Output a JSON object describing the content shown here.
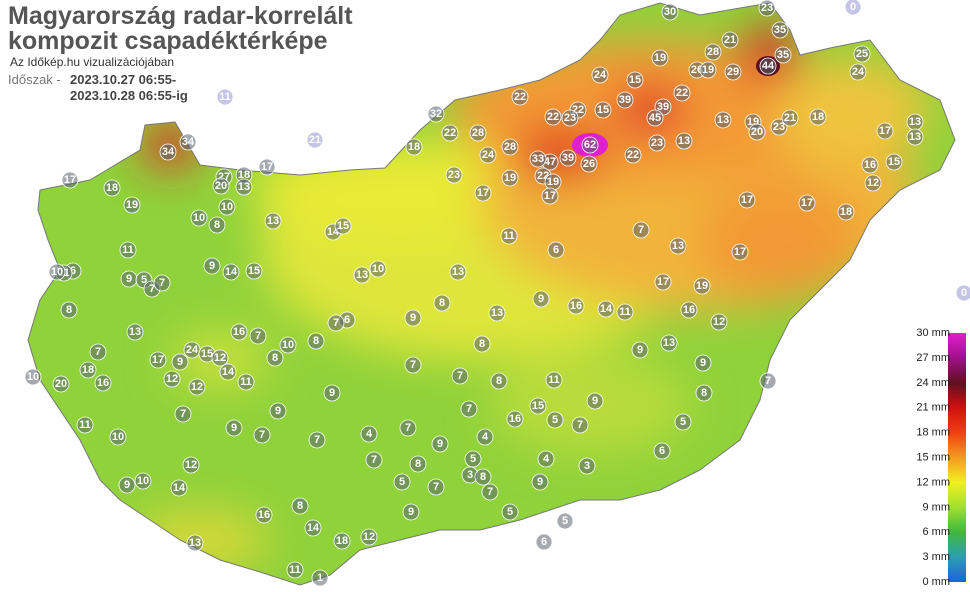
{
  "header": {
    "title_line1": "Magyarország radar-korrelált",
    "title_line2": "kompozit csapadéktérképe",
    "subtitle": "Az Időkép.hu vizualizációjában",
    "period_label": "Időszak -",
    "period_start": "2023.10.27 06:55-",
    "period_end": "2023.10.28 06:55-ig"
  },
  "legend": {
    "labels": [
      "30 mm",
      "27 mm",
      "24 mm",
      "21 mm",
      "18 mm",
      "15 mm",
      "12 mm",
      "9 mm",
      "6 mm",
      "3 mm",
      "0 mm"
    ]
  },
  "stations": [
    30,
    23,
    35,
    35,
    44,
    28,
    21,
    19,
    29,
    26,
    19,
    24,
    15,
    25,
    24,
    22,
    22,
    39,
    39,
    45,
    32,
    15,
    22,
    22,
    23,
    13,
    19,
    20,
    23,
    21,
    18,
    17,
    13,
    13,
    22,
    28,
    28,
    24,
    62,
    39,
    47,
    33,
    26,
    22,
    23,
    13,
    34,
    34,
    18,
    22,
    16,
    15,
    12,
    27,
    18,
    17,
    20,
    13,
    17,
    18,
    19,
    23,
    19,
    19,
    17,
    17,
    17,
    17,
    18,
    10,
    10,
    8,
    13,
    14,
    15,
    7,
    11,
    6,
    13,
    17,
    11,
    9,
    5,
    7,
    7,
    6,
    11,
    10,
    9,
    14,
    15,
    13,
    10,
    13,
    17,
    19,
    8,
    13,
    16,
    7,
    10,
    8,
    6,
    7,
    9,
    8,
    13,
    9,
    16,
    14,
    11,
    16,
    12,
    7,
    17,
    24,
    15,
    12,
    9,
    8,
    9,
    7,
    8,
    9,
    13,
    9,
    8,
    7,
    11,
    20,
    16,
    18,
    12,
    12,
    11,
    14,
    10,
    7,
    8,
    9,
    5,
    7,
    16,
    15,
    7,
    11,
    7,
    9,
    9,
    7,
    5,
    10,
    7,
    4,
    7,
    9,
    4,
    3,
    6,
    4,
    5,
    12,
    7,
    8,
    3,
    8,
    9,
    10,
    14,
    5,
    7,
    7,
    9,
    16,
    8,
    9,
    14,
    5,
    6,
    5,
    12,
    18,
    13,
    11,
    1,
    11,
    21,
    0,
    0
  ]
}
